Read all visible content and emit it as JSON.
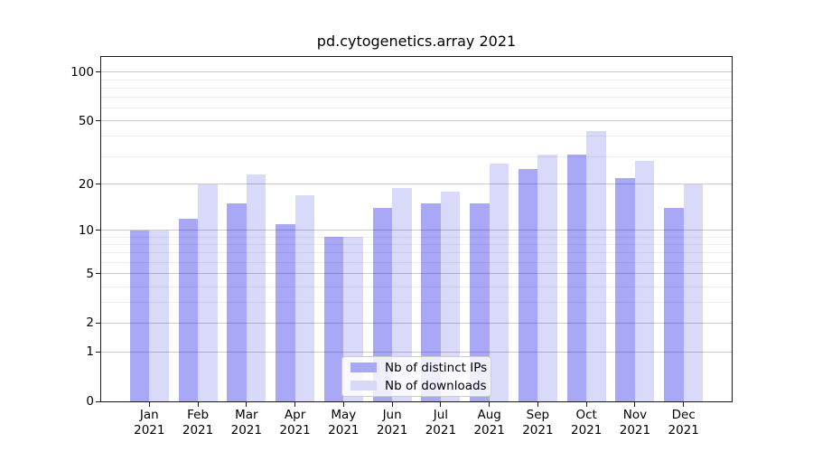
{
  "chart_data": {
    "type": "bar",
    "title": "pd.cytogenetics.array 2021",
    "categories": [
      "Jan",
      "Feb",
      "Mar",
      "Apr",
      "May",
      "Jun",
      "Jul",
      "Aug",
      "Sep",
      "Oct",
      "Nov",
      "Dec"
    ],
    "year": "2021",
    "series": [
      {
        "key": "distinct-ips",
        "name": "Nb of distinct IPs",
        "color": "#a8a8f6",
        "bar_rgba": "rgba(0,0,230,0.34)",
        "values": [
          10,
          12,
          15,
          11,
          9,
          14,
          15,
          15,
          25,
          31,
          22,
          14
        ]
      },
      {
        "key": "downloads",
        "name": "Nb of downloads",
        "color": "#d8d8f8",
        "bar_rgba": "rgba(0,0,212,0.15)",
        "values": [
          10,
          20,
          23,
          17,
          9,
          19,
          18,
          27,
          31,
          43,
          28,
          20
        ]
      }
    ],
    "y_scale": "log1p",
    "ylim": [
      0,
      124
    ],
    "y_major_ticks": [
      0,
      1,
      2,
      5,
      10,
      20,
      50,
      100
    ],
    "y_minor_ticks": [
      3,
      4,
      6,
      7,
      8,
      9,
      30,
      40,
      60,
      70,
      80,
      90
    ],
    "grid": true,
    "legend_position": "lower center",
    "axis_color": "#1a1a1a",
    "grid_major_color": "#c9c9c9",
    "grid_minor_color": "#ededed"
  }
}
